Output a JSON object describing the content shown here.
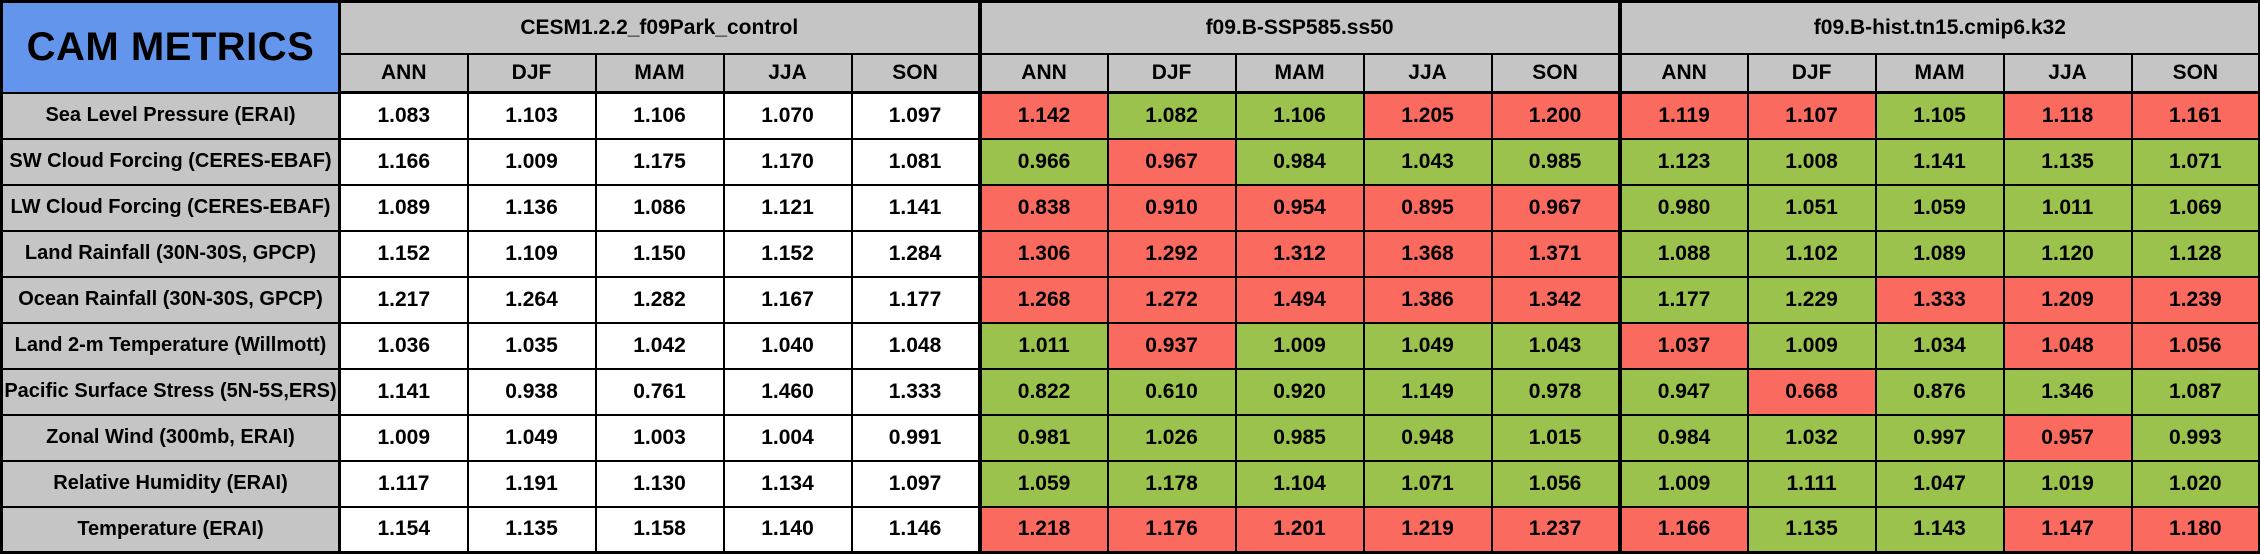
{
  "title": "CAM METRICS",
  "colors": {
    "title_blue": "#6495ED",
    "header_gray": "#C5C5C5",
    "red": "#FA6A5F",
    "green": "#9BC24D",
    "white": "#FFFFFF",
    "border": "#000000"
  },
  "chart_data": {
    "type": "table",
    "title": "CAM METRICS",
    "seasons": [
      "ANN",
      "DJF",
      "MAM",
      "JJA",
      "SON"
    ],
    "groups": [
      {
        "name": "CESM1.2.2_f09Park_control",
        "key": "control"
      },
      {
        "name": "f09.B-SSP585.ss50",
        "key": "ssp585"
      },
      {
        "name": "f09.B-hist.tn15.cmip6.k32",
        "key": "hist"
      }
    ],
    "rows": [
      {
        "label": "Sea Level Pressure (ERAI)",
        "values": {
          "control": [
            "1.083",
            "1.103",
            "1.106",
            "1.070",
            "1.097"
          ],
          "ssp585": [
            "1.142",
            "1.082",
            "1.106",
            "1.205",
            "1.200"
          ],
          "hist": [
            "1.119",
            "1.107",
            "1.105",
            "1.118",
            "1.161"
          ]
        },
        "cell_colors": {
          "ssp585": [
            "red",
            "green",
            "green",
            "red",
            "red"
          ],
          "hist": [
            "red",
            "red",
            "green",
            "red",
            "red"
          ]
        }
      },
      {
        "label": "SW Cloud Forcing (CERES-EBAF)",
        "values": {
          "control": [
            "1.166",
            "1.009",
            "1.175",
            "1.170",
            "1.081"
          ],
          "ssp585": [
            "0.966",
            "0.967",
            "0.984",
            "1.043",
            "0.985"
          ],
          "hist": [
            "1.123",
            "1.008",
            "1.141",
            "1.135",
            "1.071"
          ]
        },
        "cell_colors": {
          "ssp585": [
            "green",
            "red",
            "green",
            "green",
            "green"
          ],
          "hist": [
            "green",
            "green",
            "green",
            "green",
            "green"
          ]
        }
      },
      {
        "label": "LW Cloud Forcing (CERES-EBAF)",
        "values": {
          "control": [
            "1.089",
            "1.136",
            "1.086",
            "1.121",
            "1.141"
          ],
          "ssp585": [
            "0.838",
            "0.910",
            "0.954",
            "0.895",
            "0.967"
          ],
          "hist": [
            "0.980",
            "1.051",
            "1.059",
            "1.011",
            "1.069"
          ]
        },
        "cell_colors": {
          "ssp585": [
            "red",
            "red",
            "red",
            "red",
            "red"
          ],
          "hist": [
            "green",
            "green",
            "green",
            "green",
            "green"
          ]
        }
      },
      {
        "label": "Land Rainfall (30N-30S, GPCP)",
        "values": {
          "control": [
            "1.152",
            "1.109",
            "1.150",
            "1.152",
            "1.284"
          ],
          "ssp585": [
            "1.306",
            "1.292",
            "1.312",
            "1.368",
            "1.371"
          ],
          "hist": [
            "1.088",
            "1.102",
            "1.089",
            "1.120",
            "1.128"
          ]
        },
        "cell_colors": {
          "ssp585": [
            "red",
            "red",
            "red",
            "red",
            "red"
          ],
          "hist": [
            "green",
            "green",
            "green",
            "green",
            "green"
          ]
        }
      },
      {
        "label": "Ocean Rainfall (30N-30S, GPCP)",
        "values": {
          "control": [
            "1.217",
            "1.264",
            "1.282",
            "1.167",
            "1.177"
          ],
          "ssp585": [
            "1.268",
            "1.272",
            "1.494",
            "1.386",
            "1.342"
          ],
          "hist": [
            "1.177",
            "1.229",
            "1.333",
            "1.209",
            "1.239"
          ]
        },
        "cell_colors": {
          "ssp585": [
            "red",
            "red",
            "red",
            "red",
            "red"
          ],
          "hist": [
            "green",
            "green",
            "red",
            "red",
            "red"
          ]
        }
      },
      {
        "label": "Land 2-m Temperature (Willmott)",
        "values": {
          "control": [
            "1.036",
            "1.035",
            "1.042",
            "1.040",
            "1.048"
          ],
          "ssp585": [
            "1.011",
            "0.937",
            "1.009",
            "1.049",
            "1.043"
          ],
          "hist": [
            "1.037",
            "1.009",
            "1.034",
            "1.048",
            "1.056"
          ]
        },
        "cell_colors": {
          "ssp585": [
            "green",
            "red",
            "green",
            "green",
            "green"
          ],
          "hist": [
            "red",
            "green",
            "green",
            "red",
            "red"
          ]
        }
      },
      {
        "label": "Pacific Surface Stress (5N-5S,ERS)",
        "values": {
          "control": [
            "1.141",
            "0.938",
            "0.761",
            "1.460",
            "1.333"
          ],
          "ssp585": [
            "0.822",
            "0.610",
            "0.920",
            "1.149",
            "0.978"
          ],
          "hist": [
            "0.947",
            "0.668",
            "0.876",
            "1.346",
            "1.087"
          ]
        },
        "cell_colors": {
          "ssp585": [
            "green",
            "green",
            "green",
            "green",
            "green"
          ],
          "hist": [
            "green",
            "red",
            "green",
            "green",
            "green"
          ]
        }
      },
      {
        "label": "Zonal Wind (300mb, ERAI)",
        "values": {
          "control": [
            "1.009",
            "1.049",
            "1.003",
            "1.004",
            "0.991"
          ],
          "ssp585": [
            "0.981",
            "1.026",
            "0.985",
            "0.948",
            "1.015"
          ],
          "hist": [
            "0.984",
            "1.032",
            "0.997",
            "0.957",
            "0.993"
          ]
        },
        "cell_colors": {
          "ssp585": [
            "green",
            "green",
            "green",
            "green",
            "green"
          ],
          "hist": [
            "green",
            "green",
            "green",
            "red",
            "green"
          ]
        }
      },
      {
        "label": "Relative Humidity (ERAI)",
        "values": {
          "control": [
            "1.117",
            "1.191",
            "1.130",
            "1.134",
            "1.097"
          ],
          "ssp585": [
            "1.059",
            "1.178",
            "1.104",
            "1.071",
            "1.056"
          ],
          "hist": [
            "1.009",
            "1.111",
            "1.047",
            "1.019",
            "1.020"
          ]
        },
        "cell_colors": {
          "ssp585": [
            "green",
            "green",
            "green",
            "green",
            "green"
          ],
          "hist": [
            "green",
            "green",
            "green",
            "green",
            "green"
          ]
        }
      },
      {
        "label": "Temperature (ERAI)",
        "values": {
          "control": [
            "1.154",
            "1.135",
            "1.158",
            "1.140",
            "1.146"
          ],
          "ssp585": [
            "1.218",
            "1.176",
            "1.201",
            "1.219",
            "1.237"
          ],
          "hist": [
            "1.166",
            "1.135",
            "1.143",
            "1.147",
            "1.180"
          ]
        },
        "cell_colors": {
          "ssp585": [
            "red",
            "red",
            "red",
            "red",
            "red"
          ],
          "hist": [
            "red",
            "green",
            "green",
            "red",
            "red"
          ]
        }
      }
    ]
  }
}
